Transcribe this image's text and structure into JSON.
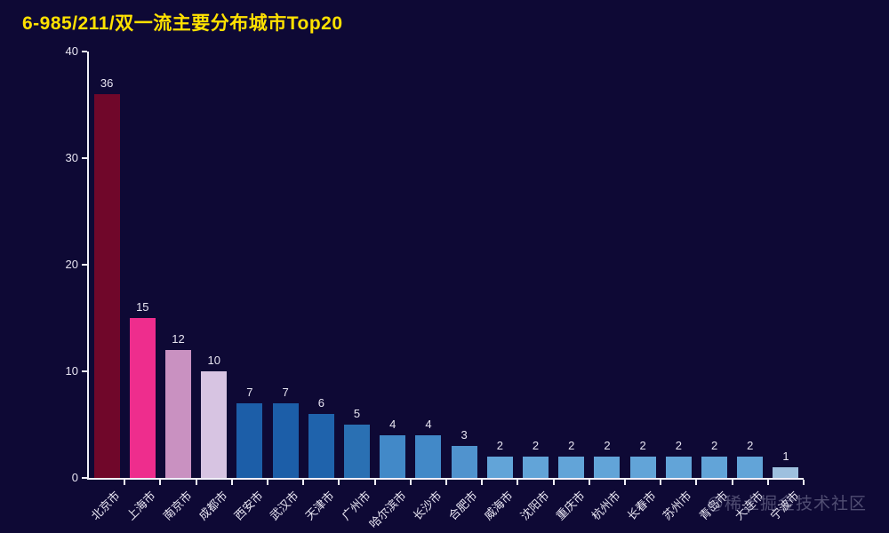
{
  "chart_data": {
    "type": "bar",
    "title": "6-985/211/双一流主要分布城市Top20",
    "categories": [
      "北京市",
      "上海市",
      "南京市",
      "成都市",
      "西安市",
      "武汉市",
      "天津市",
      "广州市",
      "哈尔滨市",
      "长沙市",
      "合肥市",
      "威海市",
      "沈阳市",
      "重庆市",
      "杭州市",
      "长春市",
      "苏州市",
      "青岛市",
      "大连市",
      "宁波市"
    ],
    "values": [
      36,
      15,
      12,
      10,
      7,
      7,
      6,
      5,
      4,
      4,
      3,
      2,
      2,
      2,
      2,
      2,
      2,
      2,
      2,
      1
    ],
    "bar_colors": [
      "#70072a",
      "#ee2d8d",
      "#c991c1",
      "#d7c4e2",
      "#1c5ea8",
      "#1c5ea8",
      "#1f63ac",
      "#2a70b3",
      "#4289c8",
      "#4289c8",
      "#5093ce",
      "#62a4d8",
      "#62a4d8",
      "#62a4d8",
      "#62a4d8",
      "#62a4d8",
      "#62a4d8",
      "#62a4d8",
      "#62a4d8",
      "#9ec0df"
    ],
    "xlabel": "",
    "ylabel": "",
    "ylim": [
      0,
      40
    ],
    "y_ticks": [
      0,
      10,
      20,
      30,
      40
    ],
    "grid": false,
    "legend": false,
    "value_labels_shown": true,
    "x_label_rotation_deg": 45
  },
  "colors": {
    "background": "#0e0935",
    "title": "#ffe100",
    "axis": "#f2f0fa",
    "label": "#e8e5f2"
  },
  "watermark": "@稀土掘金技术社区"
}
